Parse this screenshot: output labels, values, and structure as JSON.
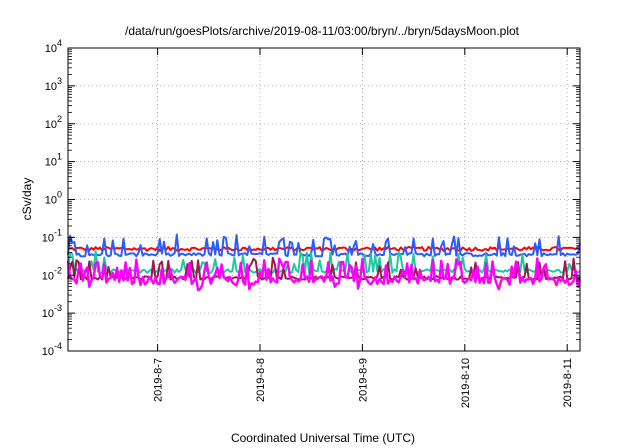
{
  "chart_data": {
    "type": "line",
    "title": "/data/run/goesPlots/archive/2019-08-11/03:00/bryn/../bryn/5daysMoon.plot",
    "xlabel": "Coordinated Universal Time (UTC)",
    "ylabel": "cSv/day",
    "yscale": "log",
    "ylim": [
      0.0001,
      10000
    ],
    "xlim": [
      "2019-08-06 03:00",
      "2019-08-11 03:00"
    ],
    "grid": true,
    "x_ticks": [
      "2019-8-7",
      "2019-8-8",
      "2019-8-9",
      "2019-8-10",
      "2019-8-11"
    ],
    "y_ticks": [
      {
        "base": "10",
        "exp": "-4",
        "value": 0.0001
      },
      {
        "base": "10",
        "exp": "-3",
        "value": 0.001
      },
      {
        "base": "10",
        "exp": "-2",
        "value": 0.01
      },
      {
        "base": "10",
        "exp": "-1",
        "value": 0.1
      },
      {
        "base": "10",
        "exp": "0",
        "value": 1
      },
      {
        "base": "10",
        "exp": "1",
        "value": 10
      },
      {
        "base": "10",
        "exp": "2",
        "value": 100
      },
      {
        "base": "10",
        "exp": "3",
        "value": 1000
      },
      {
        "base": "10",
        "exp": "4",
        "value": 10000
      }
    ],
    "series": [
      {
        "color": "#ff0000",
        "base": 0.05,
        "spread": 0.12,
        "spike": 0.0
      },
      {
        "color": "#2b5cff",
        "base": 0.035,
        "spread": 0.1,
        "spike": 0.55
      },
      {
        "color": "#1ec8a0",
        "base": 0.013,
        "spread": 0.12,
        "spike": 0.45
      },
      {
        "color": "#9a1a50",
        "base": 0.0085,
        "spread": 0.1,
        "spike": 0.4
      },
      {
        "color": "#ff00ff",
        "base": 0.0075,
        "spread": 0.25,
        "spike": 0.6
      }
    ]
  }
}
